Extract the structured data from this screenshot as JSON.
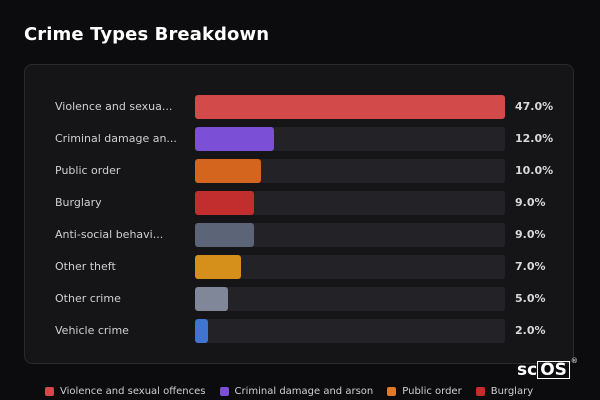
{
  "title": "Crime Types Breakdown",
  "chart_data": {
    "type": "bar",
    "orientation": "horizontal",
    "categories": [
      "Violence and sexua...",
      "Criminal damage an...",
      "Public order",
      "Burglary",
      "Anti-social behavi...",
      "Other theft",
      "Other crime",
      "Vehicle crime"
    ],
    "values": [
      47.0,
      12.0,
      10.0,
      9.0,
      9.0,
      7.0,
      5.0,
      2.0
    ],
    "value_labels": [
      "47.0%",
      "12.0%",
      "10.0%",
      "9.0%",
      "9.0%",
      "7.0%",
      "5.0%",
      "2.0%"
    ],
    "colors": [
      "#d24a4a",
      "#7b4fd6",
      "#d4651f",
      "#c22d2d",
      "#5c6478",
      "#d4901a",
      "#7f8799",
      "#3f74d0"
    ],
    "xlim": [
      0,
      47
    ],
    "legend": [
      {
        "label": "Violence and sexual offences",
        "color": "#d24a4a"
      },
      {
        "label": "Criminal damage and arson",
        "color": "#7b4fd6"
      },
      {
        "label": "Public order",
        "color": "#e07a2a"
      },
      {
        "label": "Burglary",
        "color": "#c22d2d"
      }
    ],
    "legend_position": "bottom"
  },
  "logo": {
    "text": "scOS",
    "mark": "®"
  }
}
